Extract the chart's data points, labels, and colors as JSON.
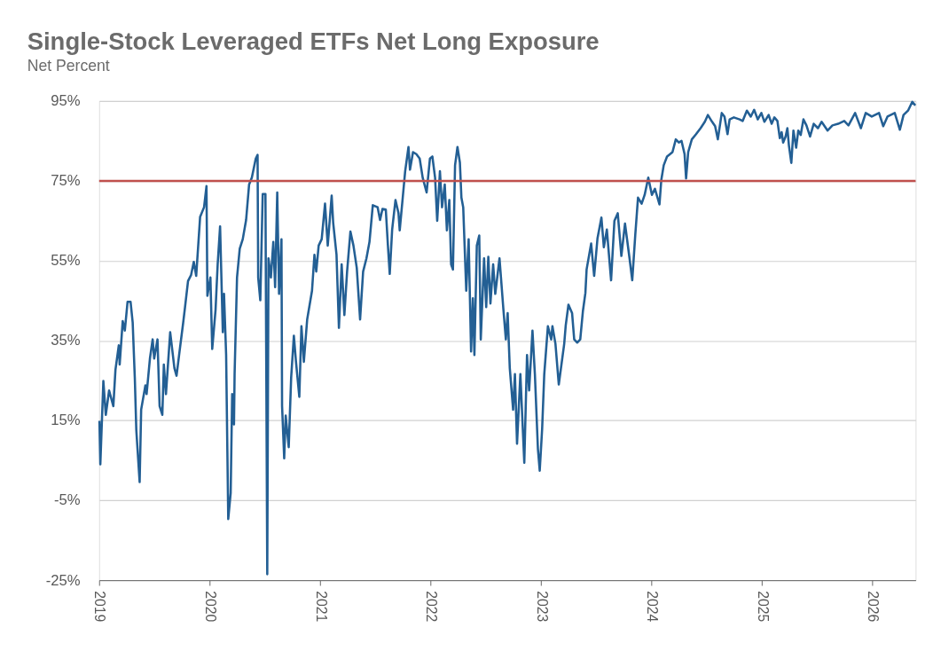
{
  "chart_data": {
    "type": "line",
    "title": "Single-Stock Leveraged ETFs Net Long Exposure",
    "subtitle": "Net Percent",
    "x": [
      "2019-01-02",
      "2019-01-05",
      "2019-01-15",
      "2019-01-23",
      "2019-02-03",
      "2019-02-17",
      "2019-02-24",
      "2019-03-07",
      "2019-03-10",
      "2019-03-20",
      "2019-03-27",
      "2019-04-05",
      "2019-04-15",
      "2019-04-22",
      "2019-04-29",
      "2019-05-04",
      "2019-05-15",
      "2019-05-20",
      "2019-06-03",
      "2019-06-07",
      "2019-06-18",
      "2019-06-27",
      "2019-07-02",
      "2019-07-13",
      "2019-07-20",
      "2019-07-29",
      "2019-08-03",
      "2019-08-10",
      "2019-08-24",
      "2019-09-07",
      "2019-09-14",
      "2019-09-25",
      "2019-10-06",
      "2019-10-11",
      "2019-10-22",
      "2019-11-01",
      "2019-11-10",
      "2019-11-18",
      "2019-12-01",
      "2019-12-14",
      "2019-12-22",
      "2019-12-25",
      "2020-01-04",
      "2020-01-10",
      "2020-01-21",
      "2020-01-28",
      "2020-02-05",
      "2020-02-14",
      "2020-02-18",
      "2020-02-25",
      "2020-03-03",
      "2020-03-11",
      "2020-03-16",
      "2020-03-22",
      "2020-03-24",
      "2020-04-01",
      "2020-04-10",
      "2020-04-20",
      "2020-05-01",
      "2020-05-11",
      "2020-05-20",
      "2020-06-02",
      "2020-06-08",
      "2020-06-10",
      "2020-06-17",
      "2020-06-25",
      "2020-07-04",
      "2020-07-10",
      "2020-07-14",
      "2020-07-22",
      "2020-07-30",
      "2020-08-05",
      "2020-08-12",
      "2020-08-18",
      "2020-08-26",
      "2020-08-28",
      "2020-09-04",
      "2020-09-09",
      "2020-09-19",
      "2020-09-27",
      "2020-10-06",
      "2020-10-13",
      "2020-10-24",
      "2020-10-31",
      "2020-11-08",
      "2020-11-19",
      "2020-12-05",
      "2020-12-13",
      "2020-12-19",
      "2020-12-27",
      "2021-01-06",
      "2021-01-17",
      "2021-01-26",
      "2021-02-08",
      "2021-02-13",
      "2021-02-24",
      "2021-03-04",
      "2021-03-13",
      "2021-03-22",
      "2021-03-31",
      "2021-04-11",
      "2021-04-21",
      "2021-05-02",
      "2021-05-13",
      "2021-05-23",
      "2021-06-03",
      "2021-06-13",
      "2021-06-24",
      "2021-07-10",
      "2021-07-18",
      "2021-07-26",
      "2021-08-06",
      "2021-08-13",
      "2021-08-19",
      "2021-08-27",
      "2021-09-07",
      "2021-09-17",
      "2021-09-21",
      "2021-10-01",
      "2021-10-09",
      "2021-10-20",
      "2021-10-25",
      "2021-11-04",
      "2021-11-15",
      "2021-11-26",
      "2021-12-06",
      "2021-12-19",
      "2021-12-30",
      "2022-01-07",
      "2022-01-16",
      "2022-01-23",
      "2022-02-01",
      "2022-02-08",
      "2022-02-17",
      "2022-02-24",
      "2022-03-04",
      "2022-03-10",
      "2022-03-16",
      "2022-03-23",
      "2022-03-31",
      "2022-04-08",
      "2022-04-13",
      "2022-04-19",
      "2022-04-29",
      "2022-05-07",
      "2022-05-15",
      "2022-05-21",
      "2022-05-26",
      "2022-06-03",
      "2022-06-11",
      "2022-06-16",
      "2022-06-27",
      "2022-07-04",
      "2022-07-11",
      "2022-07-18",
      "2022-07-27",
      "2022-08-03",
      "2022-08-17",
      "2022-08-30",
      "2022-09-07",
      "2022-09-13",
      "2022-09-20",
      "2022-10-01",
      "2022-10-07",
      "2022-10-14",
      "2022-10-25",
      "2022-11-07",
      "2022-11-16",
      "2022-11-23",
      "2022-12-04",
      "2022-12-12",
      "2022-12-22",
      "2022-12-28",
      "2023-01-05",
      "2023-01-12",
      "2023-01-24",
      "2023-02-04",
      "2023-02-08",
      "2023-02-18",
      "2023-03-01",
      "2023-03-19",
      "2023-03-24",
      "2023-04-02",
      "2023-04-14",
      "2023-04-21",
      "2023-05-01",
      "2023-05-11",
      "2023-05-20",
      "2023-05-28",
      "2023-06-01",
      "2023-06-16",
      "2023-06-26",
      "2023-07-07",
      "2023-07-20",
      "2023-07-28",
      "2023-08-07",
      "2023-08-21",
      "2023-09-01",
      "2023-09-12",
      "2023-09-24",
      "2023-10-06",
      "2023-10-21",
      "2023-10-30",
      "2023-11-09",
      "2023-11-18",
      "2023-11-30",
      "2023-12-10",
      "2023-12-22",
      "2024-01-03",
      "2024-01-13",
      "2024-01-28",
      "2024-02-03",
      "2024-02-11",
      "2024-02-22",
      "2024-03-03",
      "2024-03-11",
      "2024-03-22",
      "2024-04-01",
      "2024-04-10",
      "2024-04-20",
      "2024-04-25",
      "2024-05-02",
      "2024-05-14",
      "2024-05-28",
      "2024-06-12",
      "2024-06-26",
      "2024-07-06",
      "2024-07-20",
      "2024-07-30",
      "2024-08-08",
      "2024-08-21",
      "2024-08-30",
      "2024-09-09",
      "2024-09-16",
      "2024-09-30",
      "2024-10-19",
      "2024-10-29",
      "2024-11-12",
      "2024-11-25",
      "2024-12-06",
      "2024-12-18",
      "2024-12-30",
      "2025-01-09",
      "2025-01-23",
      "2025-02-02",
      "2025-02-11",
      "2025-02-21",
      "2025-03-01",
      "2025-03-07",
      "2025-03-12",
      "2025-03-20",
      "2025-03-26",
      "2025-03-31",
      "2025-04-08",
      "2025-04-15",
      "2025-04-24",
      "2025-05-01",
      "2025-05-09",
      "2025-05-18",
      "2025-05-28",
      "2025-06-09",
      "2025-06-21",
      "2025-07-05",
      "2025-07-17",
      "2025-08-06",
      "2025-08-22",
      "2025-09-10",
      "2025-09-30",
      "2025-10-14",
      "2025-11-05",
      "2025-11-24",
      "2025-12-10",
      "2025-12-30",
      "2026-01-23",
      "2026-02-06",
      "2026-02-20",
      "2026-03-16",
      "2026-04-02",
      "2026-04-14",
      "2026-04-29",
      "2026-05-13",
      "2026-05-23"
    ],
    "series": [
      {
        "color": "#235f94",
        "values": [
          14.9,
          4,
          24.9,
          16.4,
          22.5,
          18.6,
          27.7,
          33.8,
          29,
          39.9,
          37.5,
          44.7,
          44.7,
          39.5,
          25.7,
          12.5,
          -0.4,
          17.7,
          23.8,
          21.6,
          30.5,
          35.3,
          30.5,
          35.3,
          18.6,
          16.4,
          29,
          21.6,
          37.1,
          28.1,
          26.2,
          32.9,
          39.5,
          42.7,
          49.9,
          51.4,
          54.7,
          51.2,
          66,
          68.4,
          73.7,
          46.2,
          50.8,
          32.9,
          42.7,
          54.1,
          63.6,
          37.1,
          46.7,
          31.4,
          -9.7,
          -3.2,
          21.6,
          14,
          26.6,
          50.8,
          58,
          60.4,
          65.2,
          74.1,
          75.8,
          80.6,
          81.5,
          50.8,
          45.1,
          71.7,
          71.7,
          -23.5,
          55.6,
          50.8,
          59.7,
          48.4,
          72.1,
          46.7,
          60.4,
          18.6,
          5.5,
          16.2,
          8.3,
          25.7,
          36.2,
          29.7,
          20.9,
          38.6,
          29.7,
          40.3,
          47.5,
          56.5,
          52.3,
          58.8,
          60.4,
          69.3,
          58.8,
          71.3,
          64.5,
          56.5,
          38.2,
          54.1,
          41.4,
          52.3,
          62.3,
          58.8,
          53.2,
          40.3,
          52.3,
          55.6,
          59.7,
          68.9,
          68.4,
          65.2,
          68,
          67.8,
          58.8,
          51.7,
          62.8,
          70.2,
          66.9,
          62.6,
          70.8,
          77.4,
          83.5,
          77.8,
          82.2,
          81.7,
          80.6,
          75.8,
          72.1,
          80.6,
          81.1,
          75.8,
          65,
          77.4,
          68.4,
          74.1,
          62.6,
          70.2,
          54.1,
          52.8,
          78.9,
          83.5,
          79.6,
          70.8,
          68.4,
          47.5,
          60.4,
          32.3,
          45.6,
          31.4,
          58.8,
          61.3,
          35.3,
          55.6,
          43.4,
          56,
          44.3,
          54.1,
          46.7,
          55.6,
          42.7,
          35.3,
          41.9,
          28.1,
          17.7,
          26.6,
          9.2,
          26.6,
          4.4,
          31.4,
          22.5,
          37.5,
          26.6,
          7.9,
          2.4,
          12.9,
          26.6,
          38.6,
          35.3,
          38.6,
          34.2,
          24,
          34.2,
          38.8,
          44,
          41.9,
          35.3,
          34.5,
          35.3,
          42.5,
          46.9,
          52.8,
          59.3,
          51.2,
          60.6,
          65.8,
          58.4,
          62.8,
          50.1,
          65,
          66.9,
          56.2,
          64.3,
          55.6,
          50.1,
          61.5,
          70.8,
          69.3,
          71.5,
          75.8,
          71.5,
          73,
          69.1,
          75.2,
          78.9,
          81.1,
          81.7,
          82.2,
          85.4,
          84.6,
          85,
          81.7,
          75.6,
          82.2,
          85.4,
          86.7,
          88.2,
          89.8,
          91.5,
          89.8,
          88.7,
          85.4,
          92,
          91.1,
          86.7,
          90.4,
          90.9,
          90.4,
          90,
          92.6,
          91.1,
          92.8,
          90.4,
          92,
          89.8,
          91.5,
          89.3,
          90.9,
          90,
          85.7,
          87.2,
          84.6,
          86.1,
          88.2,
          83.9,
          79.5,
          87.6,
          83.3,
          87.6,
          86.5,
          90.4,
          88.9,
          86.1,
          89.3,
          88.2,
          89.8,
          87.6,
          88.9,
          89.3,
          90,
          88.9,
          92,
          88.2,
          92,
          91.1,
          92,
          88.7,
          91.1,
          92,
          87.8,
          91.5,
          92.6,
          94.8,
          93.9
        ]
      }
    ],
    "xlim": [
      "2019-01-01",
      "2026-05-24"
    ],
    "xticks": [
      "2019",
      "2020",
      "2021",
      "2022",
      "2023",
      "2024",
      "2025",
      "2026"
    ],
    "ylim": [
      -25,
      95
    ],
    "yticks": [
      {
        "value": -25,
        "label": "-25%"
      },
      {
        "value": -5,
        "label": "-5%"
      },
      {
        "value": 15,
        "label": "15%"
      },
      {
        "value": 35,
        "label": "35%"
      },
      {
        "value": 55,
        "label": "55%"
      },
      {
        "value": 75,
        "label": "75%"
      },
      {
        "value": 95,
        "label": "95%"
      }
    ],
    "ref_lines": [
      {
        "axis": "y",
        "value": 75,
        "color": "#c0504d"
      }
    ],
    "grid": "y",
    "marker": "none",
    "line_style": "solid"
  }
}
